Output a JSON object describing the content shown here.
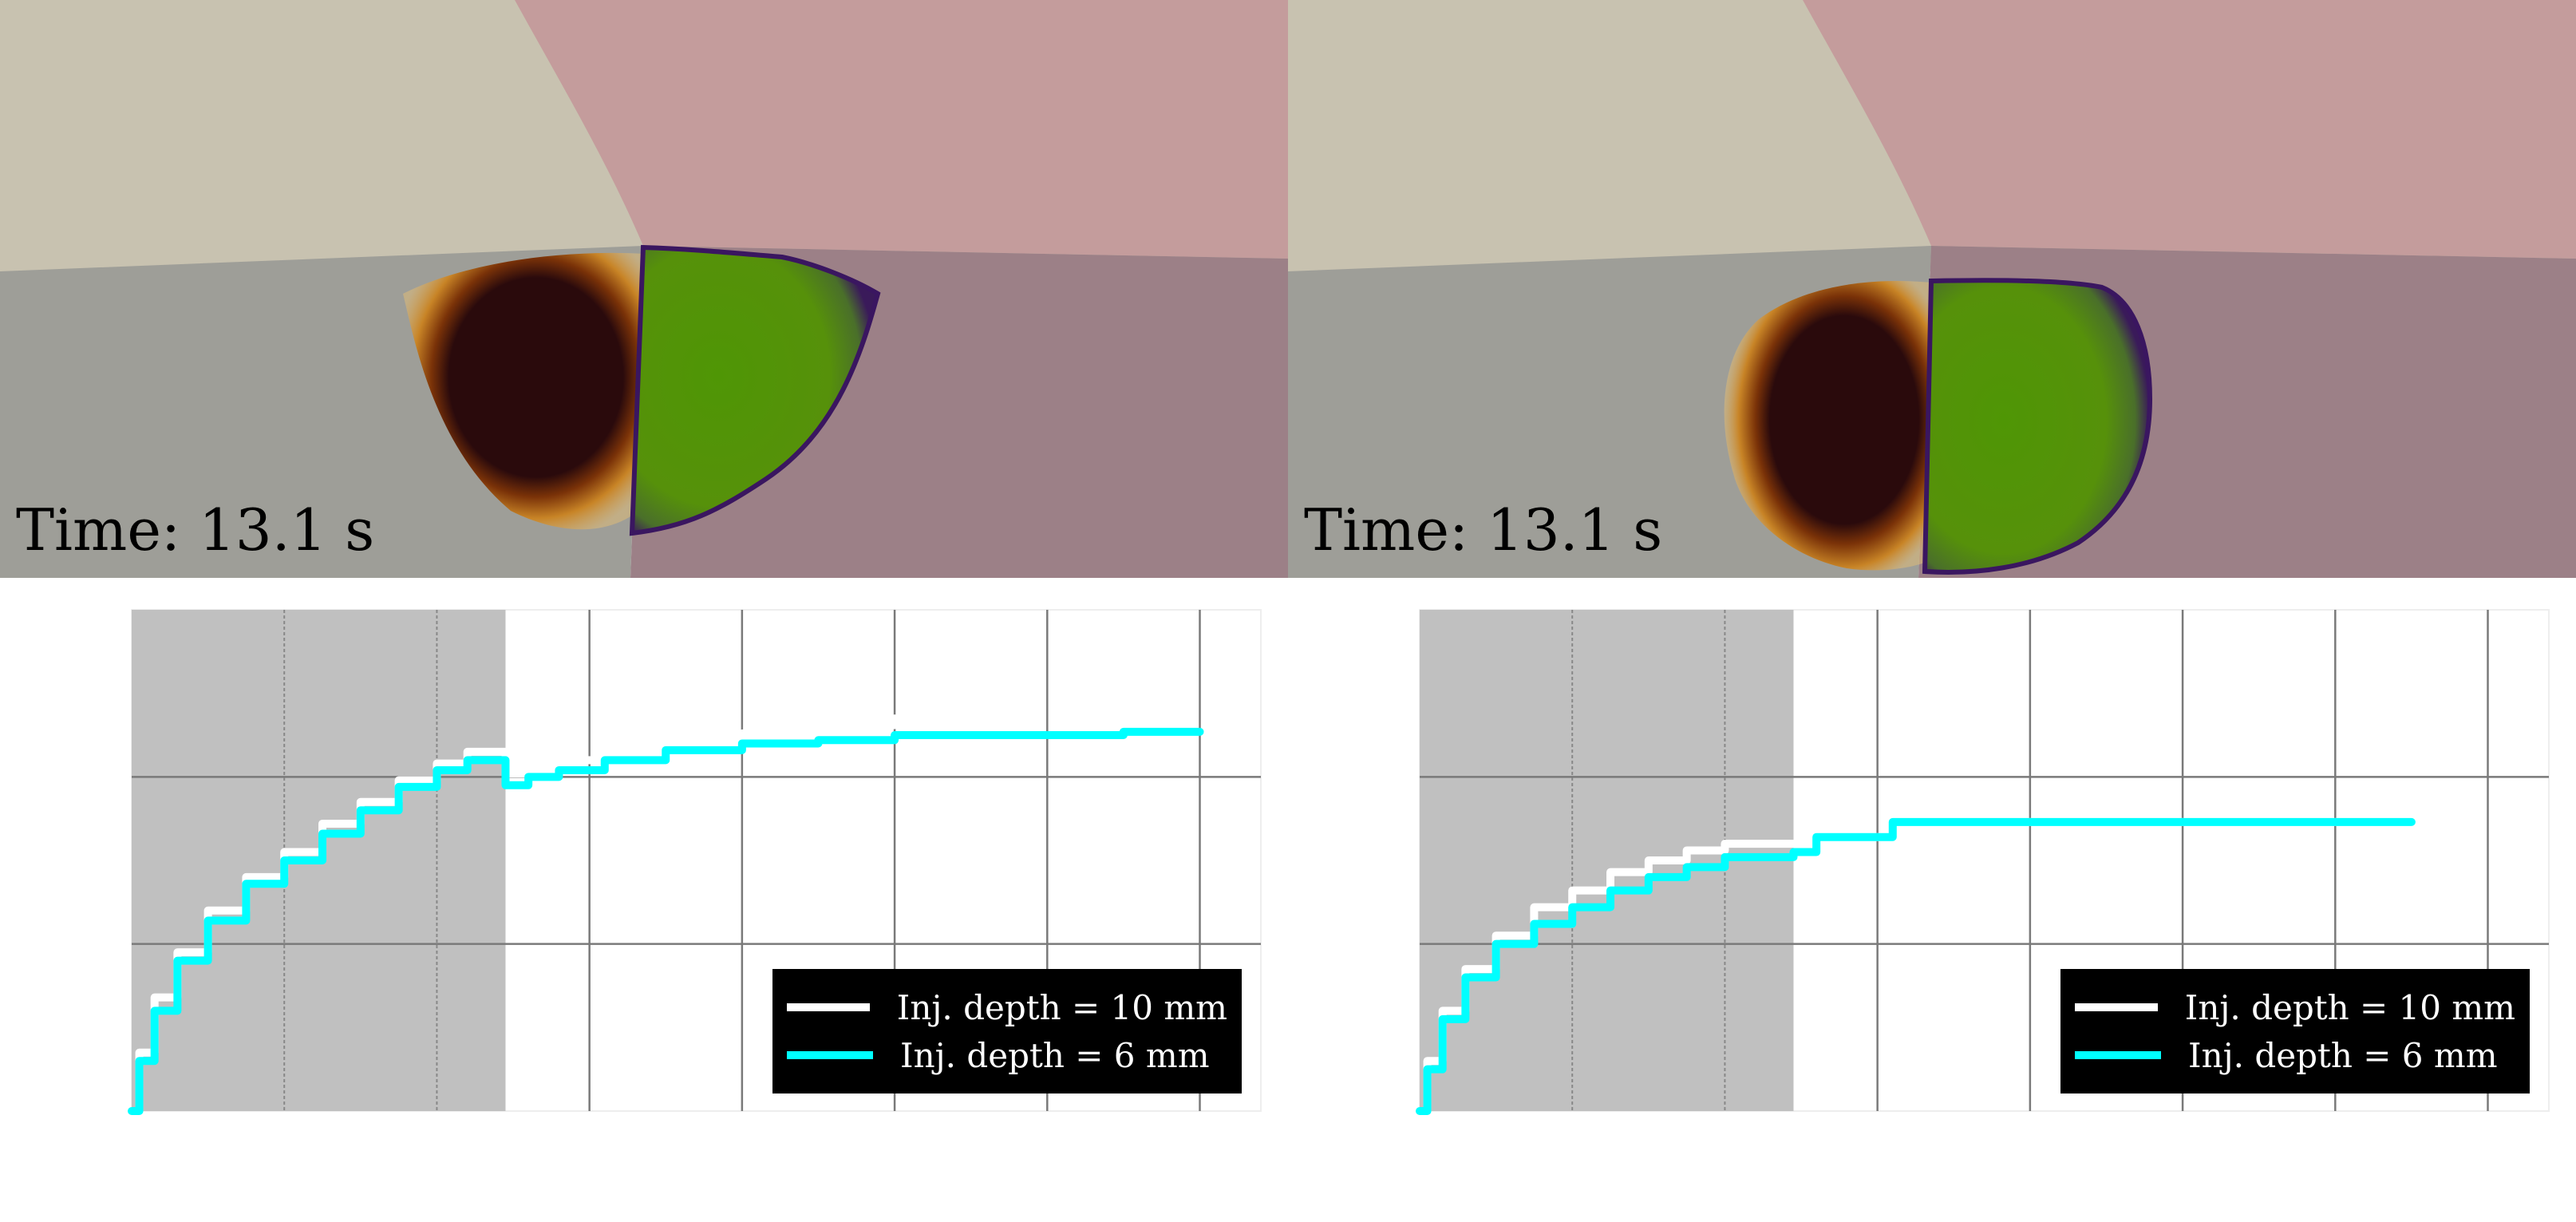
{
  "panels": [
    {
      "time_label": "Time: 13.1 s",
      "chart_data": {
        "type": "line",
        "title": "",
        "xlabel": "",
        "ylabel": "",
        "xlim": [
          0,
          7.4
        ],
        "ylim": [
          0,
          3
        ],
        "x_grid": [
          1,
          2,
          3,
          4,
          5,
          6,
          7
        ],
        "y_grid": [
          1,
          2
        ],
        "shaded_region": [
          0,
          2.45
        ],
        "legend_location": "lower-right",
        "series": [
          {
            "name": "Inj. depth = 10 mm",
            "color": "#ffffff",
            "x": [
              0,
              0.05,
              0.15,
              0.3,
              0.5,
              0.75,
              1.0,
              1.25,
              1.5,
              1.75,
              2.0,
              2.2,
              2.45,
              2.6,
              2.8,
              3.1,
              3.5,
              4.0,
              4.5,
              5.0
            ],
            "y": [
              0,
              0.35,
              0.68,
              0.95,
              1.2,
              1.4,
              1.55,
              1.72,
              1.85,
              1.98,
              2.08,
              2.15,
              2.02,
              2.06,
              2.1,
              2.16,
              2.2,
              2.26,
              2.31,
              2.35
            ]
          },
          {
            "name": "Inj. depth = 6 mm",
            "color": "#00ffff",
            "x": [
              0,
              0.05,
              0.15,
              0.3,
              0.5,
              0.75,
              1.0,
              1.25,
              1.5,
              1.75,
              2.0,
              2.2,
              2.45,
              2.6,
              2.8,
              3.1,
              3.5,
              4.0,
              4.5,
              5.0,
              6.5,
              7.0
            ],
            "y": [
              0,
              0.3,
              0.6,
              0.9,
              1.14,
              1.36,
              1.5,
              1.66,
              1.8,
              1.94,
              2.04,
              2.1,
              1.95,
              2.0,
              2.04,
              2.1,
              2.16,
              2.2,
              2.22,
              2.25,
              2.27,
              2.27
            ]
          }
        ]
      }
    },
    {
      "time_label": "Time: 13.1 s",
      "chart_data": {
        "type": "line",
        "title": "",
        "xlabel": "",
        "ylabel": "",
        "xlim": [
          0,
          7.4
        ],
        "ylim": [
          0,
          3
        ],
        "x_grid": [
          1,
          2,
          3,
          4,
          5,
          6,
          7
        ],
        "y_grid": [
          1,
          2
        ],
        "shaded_region": [
          0,
          2.45
        ],
        "legend_location": "lower-right",
        "series": [
          {
            "name": "Inj. depth = 10 mm",
            "color": "#ffffff",
            "x": [
              0,
              0.05,
              0.15,
              0.3,
              0.5,
              0.75,
              1.0,
              1.25,
              1.5,
              1.75,
              2.0,
              2.45,
              2.6,
              3.0,
              3.1,
              3.3,
              4.0,
              5.0,
              6.0,
              6.5
            ],
            "y": [
              0,
              0.3,
              0.6,
              0.85,
              1.05,
              1.22,
              1.32,
              1.43,
              1.5,
              1.56,
              1.6,
              1.6,
              1.64,
              1.64,
              1.73,
              1.73,
              1.73,
              1.73,
              1.73,
              1.73
            ]
          },
          {
            "name": "Inj. depth = 6 mm",
            "color": "#00ffff",
            "x": [
              0,
              0.05,
              0.15,
              0.3,
              0.5,
              0.75,
              1.0,
              1.25,
              1.5,
              1.75,
              2.0,
              2.45,
              2.6,
              3.0,
              3.1,
              3.3,
              4.0,
              5.0,
              6.0,
              6.5
            ],
            "y": [
              0,
              0.25,
              0.55,
              0.8,
              1.0,
              1.12,
              1.22,
              1.32,
              1.4,
              1.46,
              1.52,
              1.55,
              1.64,
              1.64,
              1.73,
              1.73,
              1.73,
              1.73,
              1.73,
              1.73
            ]
          }
        ]
      }
    }
  ]
}
